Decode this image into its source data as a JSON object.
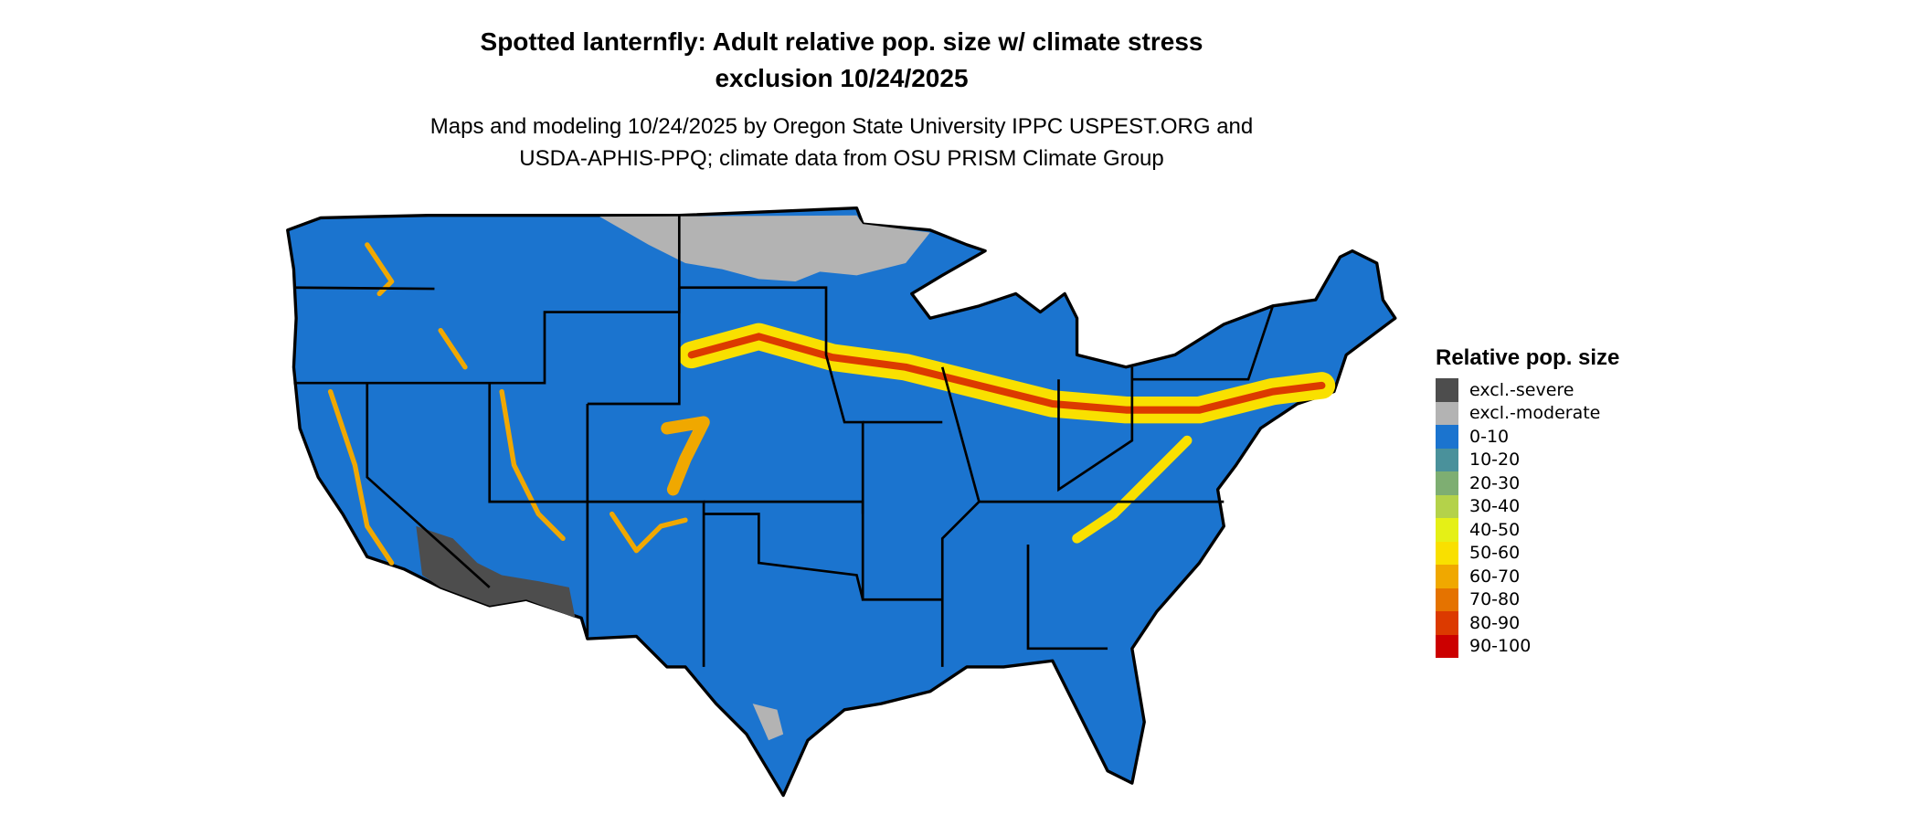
{
  "title": {
    "line1": "Spotted lanternfly: Adult relative pop. size w/ climate stress",
    "line2": "exclusion 10/24/2025"
  },
  "subtitle": {
    "line1": "Maps and modeling 10/24/2025 by Oregon State University IPPC USPEST.ORG and",
    "line2": "USDA-APHIS-PPQ; climate data from OSU PRISM Climate Group"
  },
  "legend": {
    "title": "Relative pop. size",
    "items": [
      {
        "label": "excl.-severe",
        "color": "#4d4d4d"
      },
      {
        "label": "excl.-moderate",
        "color": "#b3b3b3"
      },
      {
        "label": "0-10",
        "color": "#1b74cf"
      },
      {
        "label": "10-20",
        "color": "#4a919b"
      },
      {
        "label": "20-30",
        "color": "#7eae72"
      },
      {
        "label": "30-40",
        "color": "#b4d24a"
      },
      {
        "label": "40-50",
        "color": "#e5f016"
      },
      {
        "label": "50-60",
        "color": "#f9e000"
      },
      {
        "label": "60-70",
        "color": "#f0a800"
      },
      {
        "label": "70-80",
        "color": "#e57300"
      },
      {
        "label": "80-90",
        "color": "#dc3a00"
      },
      {
        "label": "90-100",
        "color": "#cc0000"
      }
    ]
  }
}
